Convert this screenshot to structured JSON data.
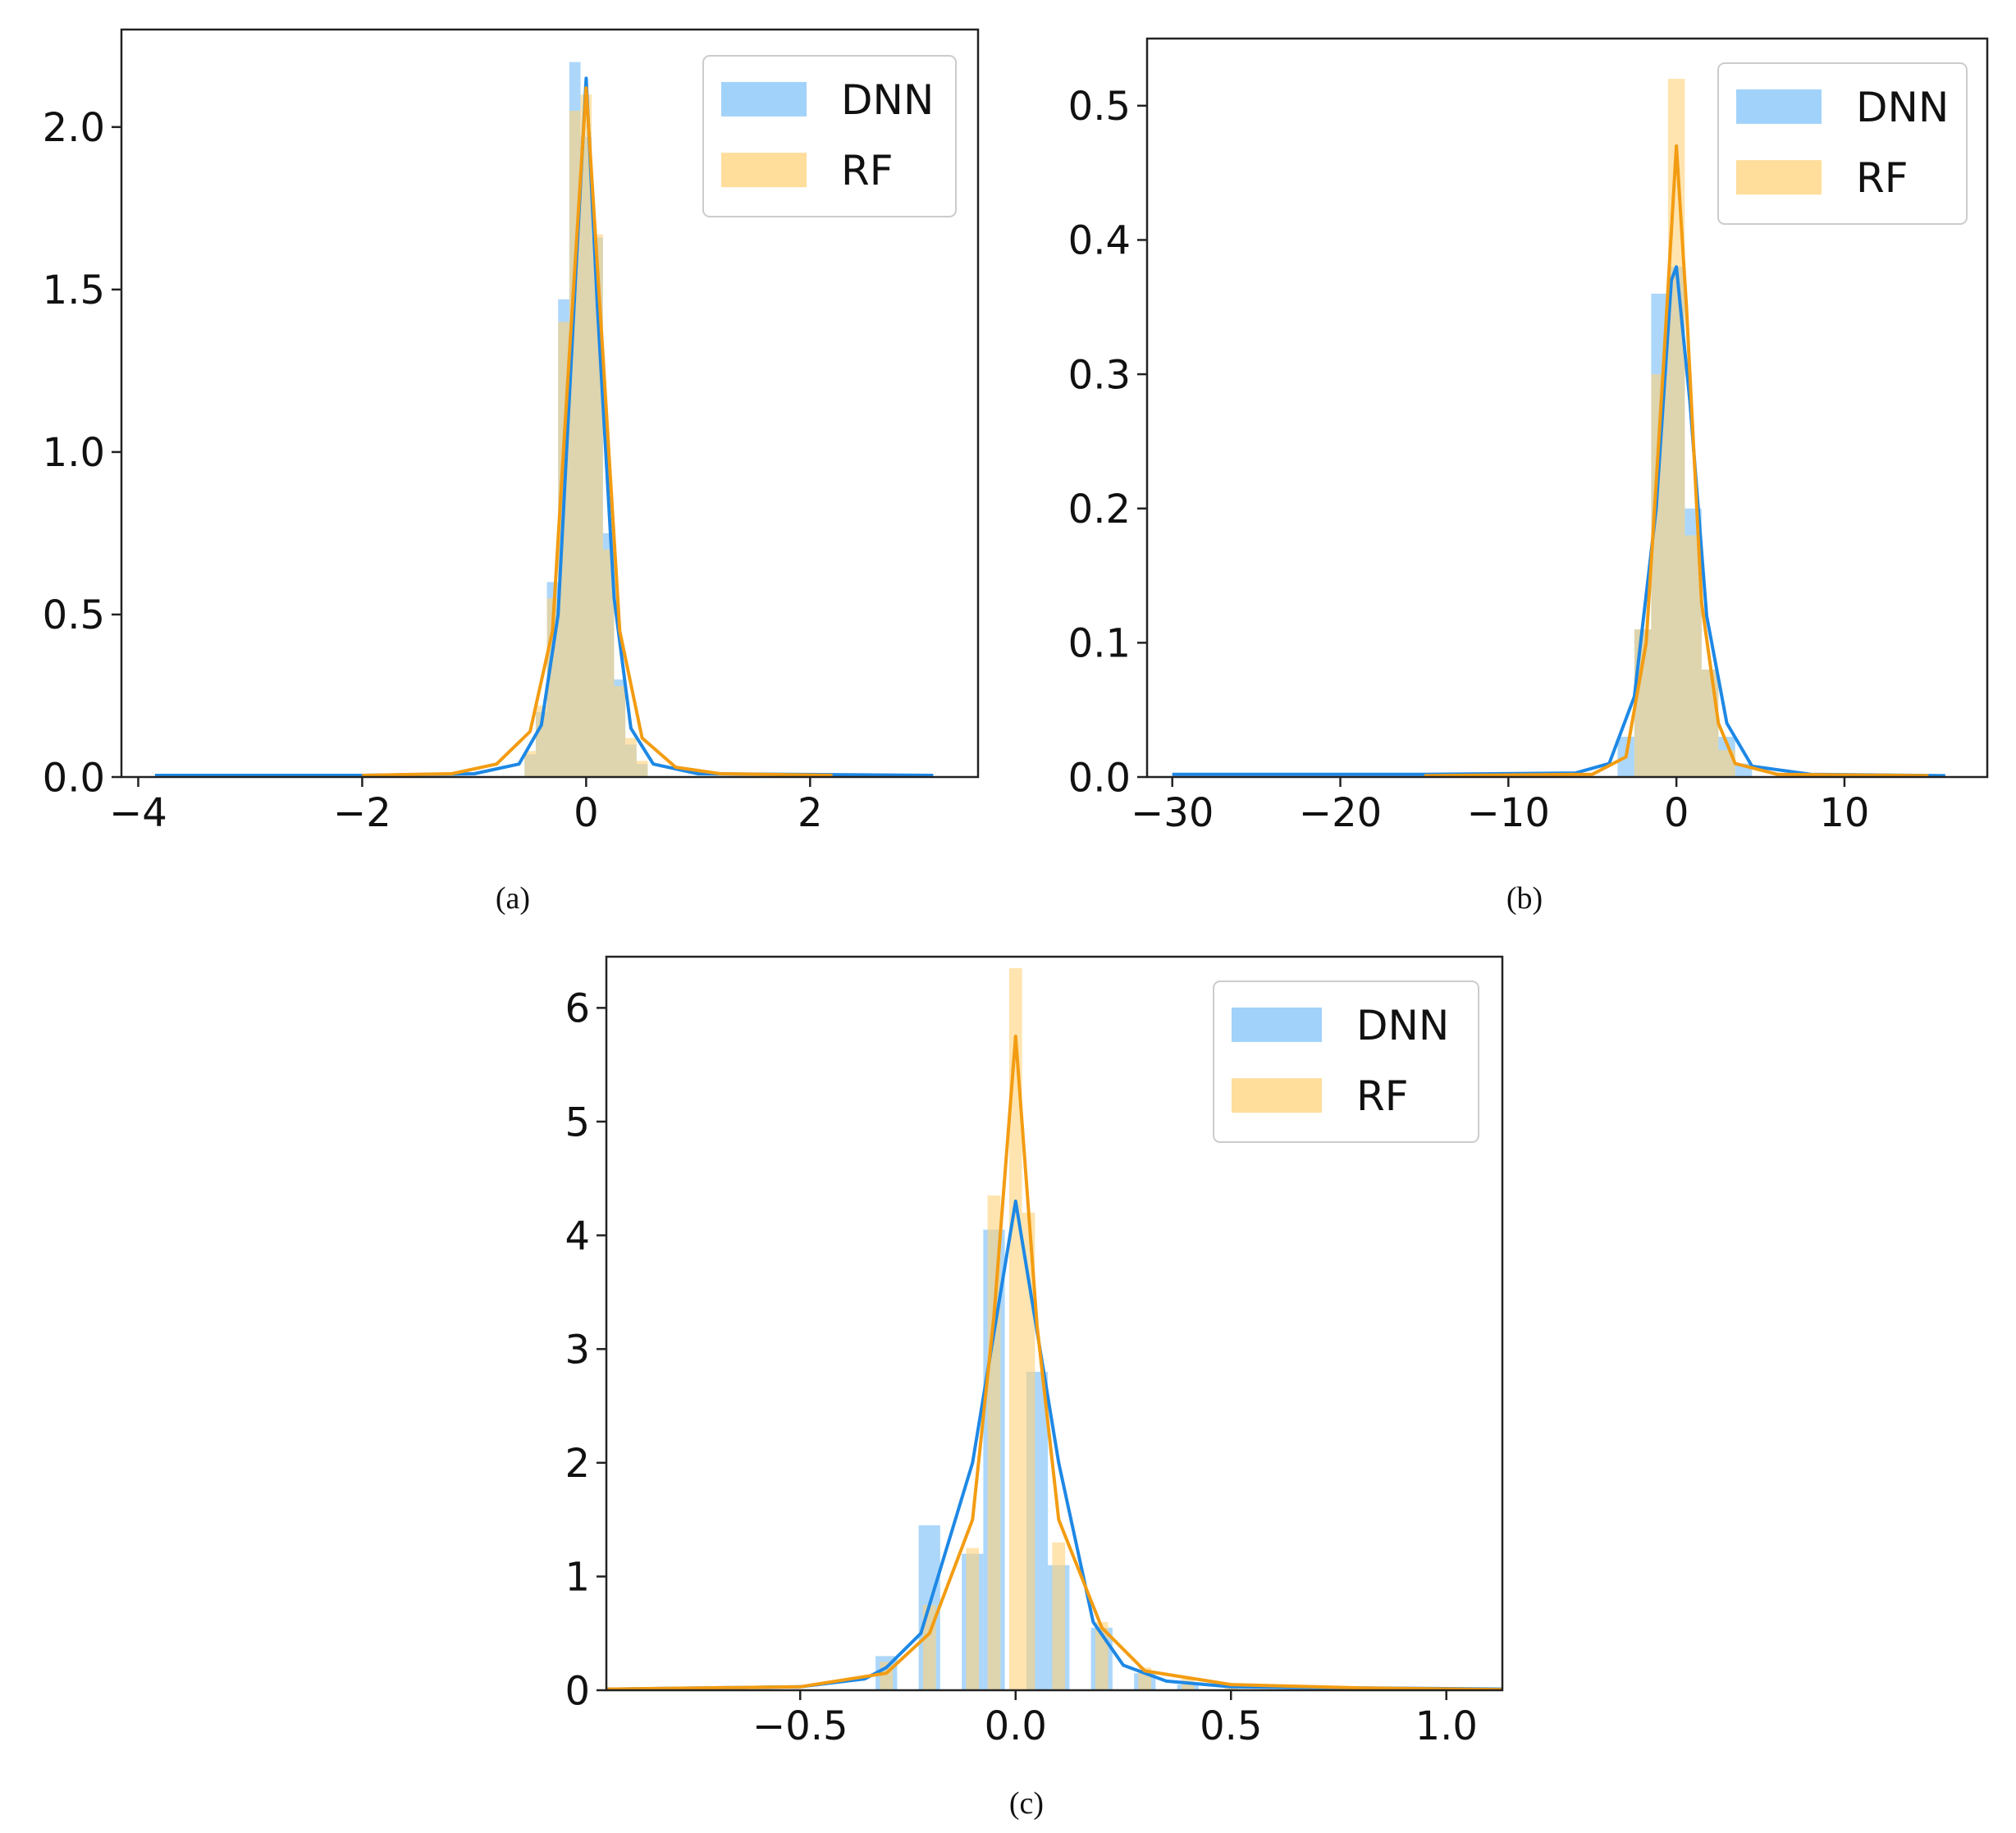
{
  "chart_data": [
    {
      "id": "a",
      "type": "histogram",
      "caption": "(a)",
      "xlim": [
        -4.15,
        3.5
      ],
      "ylim": [
        0,
        2.3
      ],
      "xticks": [
        -4,
        -2,
        0,
        2
      ],
      "xtick_labels": [
        "−4",
        "−2",
        "0",
        "2"
      ],
      "yticks": [
        0.0,
        0.5,
        1.0,
        1.5,
        2.0
      ],
      "ytick_labels": [
        "0.0",
        "0.5",
        "1.0",
        "1.5",
        "2.0"
      ],
      "legend_position": "top-right",
      "series": [
        {
          "name": "DNN",
          "color": "#1e88e5",
          "fill": "#90caf9",
          "bars": [
            [
              -0.5,
              0.07
            ],
            [
              -0.4,
              0.2
            ],
            [
              -0.3,
              0.6
            ],
            [
              -0.2,
              1.47
            ],
            [
              -0.1,
              2.2
            ],
            [
              0.0,
              1.97
            ],
            [
              0.1,
              1.66
            ],
            [
              0.2,
              0.75
            ],
            [
              0.3,
              0.3
            ],
            [
              0.4,
              0.1
            ],
            [
              0.5,
              0.04
            ]
          ],
          "kde": [
            [
              -3.85,
              0.005
            ],
            [
              -2,
              0.005
            ],
            [
              -1,
              0.01
            ],
            [
              -0.6,
              0.04
            ],
            [
              -0.4,
              0.16
            ],
            [
              -0.25,
              0.5
            ],
            [
              -0.1,
              1.5
            ],
            [
              0.0,
              2.15
            ],
            [
              0.1,
              1.45
            ],
            [
              0.25,
              0.55
            ],
            [
              0.4,
              0.15
            ],
            [
              0.6,
              0.04
            ],
            [
              1.0,
              0.01
            ],
            [
              3.1,
              0.005
            ]
          ]
        },
        {
          "name": "RF",
          "color": "#f39c12",
          "fill": "#ffd27a",
          "bars": [
            [
              -0.5,
              0.08
            ],
            [
              -0.4,
              0.22
            ],
            [
              -0.3,
              0.55
            ],
            [
              -0.2,
              1.4
            ],
            [
              -0.1,
              2.05
            ],
            [
              0.0,
              2.1
            ],
            [
              0.1,
              1.67
            ],
            [
              0.2,
              0.7
            ],
            [
              0.3,
              0.28
            ],
            [
              0.4,
              0.12
            ],
            [
              0.5,
              0.05
            ]
          ],
          "kde": [
            [
              -2,
              0.005
            ],
            [
              -1.2,
              0.01
            ],
            [
              -0.8,
              0.04
            ],
            [
              -0.5,
              0.14
            ],
            [
              -0.3,
              0.45
            ],
            [
              -0.15,
              1.3
            ],
            [
              0.0,
              2.12
            ],
            [
              0.15,
              1.3
            ],
            [
              0.3,
              0.45
            ],
            [
              0.5,
              0.12
            ],
            [
              0.8,
              0.03
            ],
            [
              1.2,
              0.01
            ],
            [
              2.2,
              0.005
            ]
          ]
        }
      ]
    },
    {
      "id": "b",
      "type": "histogram",
      "caption": "(b)",
      "xlim": [
        -31.5,
        18.5
      ],
      "ylim": [
        0,
        0.55
      ],
      "xticks": [
        -30,
        -20,
        -10,
        0,
        10
      ],
      "xtick_labels": [
        "−30",
        "−20",
        "−10",
        "0",
        "10"
      ],
      "yticks": [
        0.0,
        0.1,
        0.2,
        0.3,
        0.4,
        0.5
      ],
      "ytick_labels": [
        "0.0",
        "0.1",
        "0.2",
        "0.3",
        "0.4",
        "0.5"
      ],
      "legend_position": "top-right",
      "series": [
        {
          "name": "DNN",
          "color": "#1e88e5",
          "fill": "#90caf9",
          "bars": [
            [
              -3,
              0.03
            ],
            [
              -2,
              0.11
            ],
            [
              -1,
              0.36
            ],
            [
              0,
              0.38
            ],
            [
              1,
              0.2
            ],
            [
              2,
              0.08
            ],
            [
              3,
              0.03
            ],
            [
              4,
              0.01
            ]
          ],
          "kde": [
            [
              -30,
              0.002
            ],
            [
              -15,
              0.002
            ],
            [
              -6,
              0.003
            ],
            [
              -4,
              0.01
            ],
            [
              -2.5,
              0.06
            ],
            [
              -1.2,
              0.2
            ],
            [
              -0.3,
              0.37
            ],
            [
              0,
              0.38
            ],
            [
              0.8,
              0.28
            ],
            [
              1.8,
              0.12
            ],
            [
              3,
              0.04
            ],
            [
              4.5,
              0.008
            ],
            [
              8,
              0.002
            ],
            [
              16,
              0.001
            ]
          ]
        },
        {
          "name": "RF",
          "color": "#f39c12",
          "fill": "#ffd27a",
          "bars": [
            [
              -2,
              0.11
            ],
            [
              -1,
              0.3
            ],
            [
              0,
              0.52
            ],
            [
              1,
              0.18
            ],
            [
              2,
              0.08
            ],
            [
              3,
              0.02
            ]
          ],
          "kde": [
            [
              -15,
              0.001
            ],
            [
              -5,
              0.002
            ],
            [
              -3,
              0.015
            ],
            [
              -1.8,
              0.1
            ],
            [
              -0.8,
              0.3
            ],
            [
              0,
              0.47
            ],
            [
              0.6,
              0.35
            ],
            [
              1.5,
              0.13
            ],
            [
              2.5,
              0.04
            ],
            [
              3.5,
              0.01
            ],
            [
              6,
              0.002
            ],
            [
              15,
              0.001
            ]
          ]
        }
      ]
    },
    {
      "id": "c",
      "type": "histogram",
      "caption": "(c)",
      "xlim": [
        -0.95,
        1.13
      ],
      "ylim": [
        0,
        6.45
      ],
      "xticks": [
        -0.5,
        0.0,
        0.5,
        1.0
      ],
      "xtick_labels": [
        "−0.5",
        "0.0",
        "0.5",
        "1.0"
      ],
      "yticks": [
        0,
        1,
        2,
        3,
        4,
        5,
        6
      ],
      "ytick_labels": [
        "0",
        "1",
        "2",
        "3",
        "4",
        "5",
        "6"
      ],
      "legend_position": "top-right",
      "series": [
        {
          "name": "DNN",
          "color": "#1e88e5",
          "fill": "#90caf9",
          "bars": [
            [
              -0.3,
              0.3
            ],
            [
              -0.2,
              1.45
            ],
            [
              -0.1,
              1.2
            ],
            [
              -0.05,
              4.05
            ],
            [
              0.05,
              2.8
            ],
            [
              0.1,
              1.1
            ],
            [
              0.2,
              0.55
            ],
            [
              0.3,
              0.15
            ],
            [
              0.4,
              0.05
            ]
          ],
          "kde": [
            [
              -0.95,
              0.01
            ],
            [
              -0.5,
              0.03
            ],
            [
              -0.35,
              0.1
            ],
            [
              -0.3,
              0.2
            ],
            [
              -0.22,
              0.5
            ],
            [
              -0.1,
              2.0
            ],
            [
              0.0,
              4.3
            ],
            [
              0.1,
              2.0
            ],
            [
              0.18,
              0.6
            ],
            [
              0.25,
              0.22
            ],
            [
              0.35,
              0.08
            ],
            [
              0.5,
              0.03
            ],
            [
              1.13,
              0.01
            ]
          ]
        },
        {
          "name": "RF",
          "color": "#f39c12",
          "fill": "#ffd27a",
          "bars": [
            [
              -0.3,
              0.25
            ],
            [
              -0.2,
              0.75
            ],
            [
              -0.1,
              1.25
            ],
            [
              -0.05,
              4.35
            ],
            [
              0.0,
              6.35
            ],
            [
              0.03,
              4.2
            ],
            [
              0.1,
              1.3
            ],
            [
              0.2,
              0.6
            ],
            [
              0.3,
              0.2
            ],
            [
              0.4,
              0.1
            ],
            [
              0.5,
              0.05
            ]
          ],
          "kde": [
            [
              -0.95,
              0.01
            ],
            [
              -0.5,
              0.03
            ],
            [
              -0.3,
              0.15
            ],
            [
              -0.2,
              0.5
            ],
            [
              -0.1,
              1.5
            ],
            [
              -0.05,
              3.3
            ],
            [
              0.0,
              5.75
            ],
            [
              0.05,
              3.2
            ],
            [
              0.1,
              1.5
            ],
            [
              0.2,
              0.55
            ],
            [
              0.3,
              0.17
            ],
            [
              0.5,
              0.05
            ],
            [
              0.8,
              0.02
            ],
            [
              1.13,
              0.005
            ]
          ]
        }
      ]
    }
  ]
}
